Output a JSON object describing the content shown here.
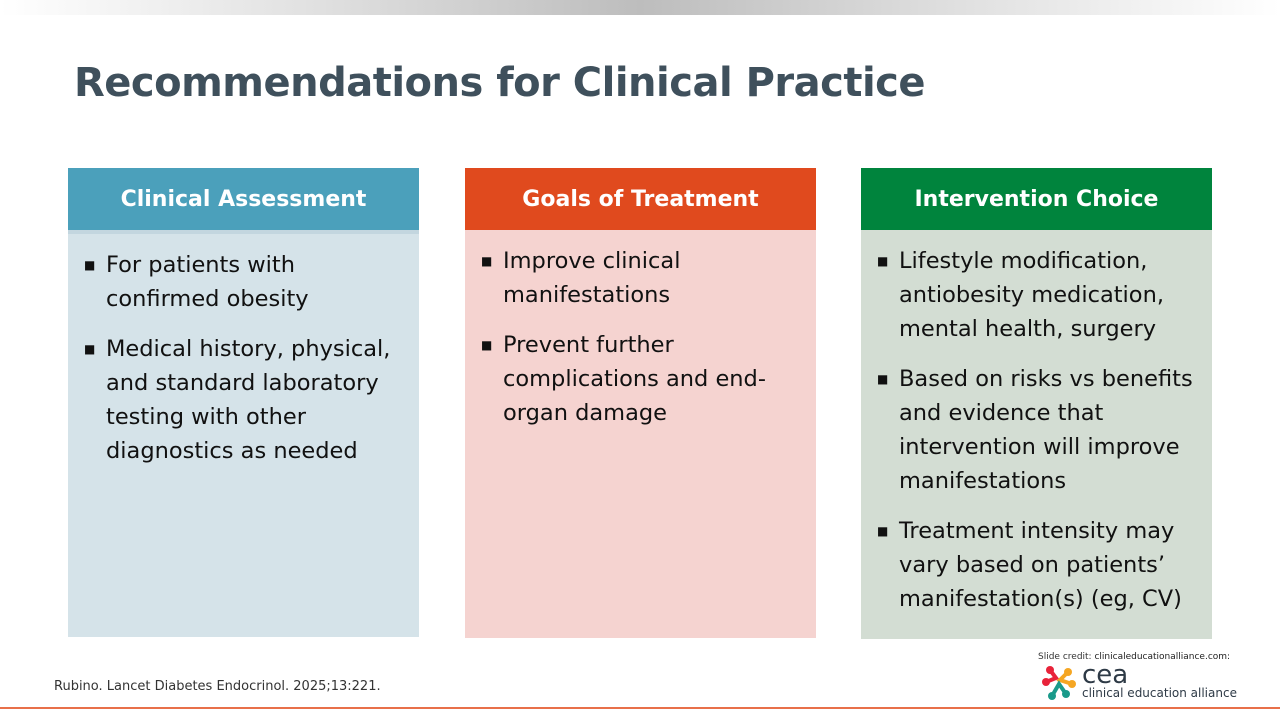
{
  "title": "Recommendations for Clinical Practice",
  "columns": [
    {
      "heading": "Clinical Assessment",
      "head_color": "#4ba0bb",
      "body_color": "#d5e3e9",
      "items": [
        "For patients with confirmed obesity",
        "Medical history, physical, and standard laboratory testing with other diagnostics as needed"
      ]
    },
    {
      "heading": "Goals of Treatment",
      "head_color": "#e04a1e",
      "body_color": "#f5d3d0",
      "items": [
        "Improve clinical manifestations",
        "Prevent further complications and end-organ damage"
      ]
    },
    {
      "heading": "Intervention Choice",
      "head_color": "#00843d",
      "body_color": "#d3ddd3",
      "items": [
        "Lifestyle modification, antiobesity medication, mental health, surgery",
        "Based on risks vs benefits and evidence that intervention will improve manifestations",
        "Treatment intensity may vary based on patients’ manifestation(s) (eg, CV)"
      ]
    }
  ],
  "footer": {
    "citation": "Rubino. Lancet Diabetes Endocrinol. 2025;13:221.",
    "credit_label": "Slide credit:",
    "credit_site": "clinicaleducationalliance.com:",
    "logo_short": "cea",
    "logo_full": "clinical education alliance"
  }
}
